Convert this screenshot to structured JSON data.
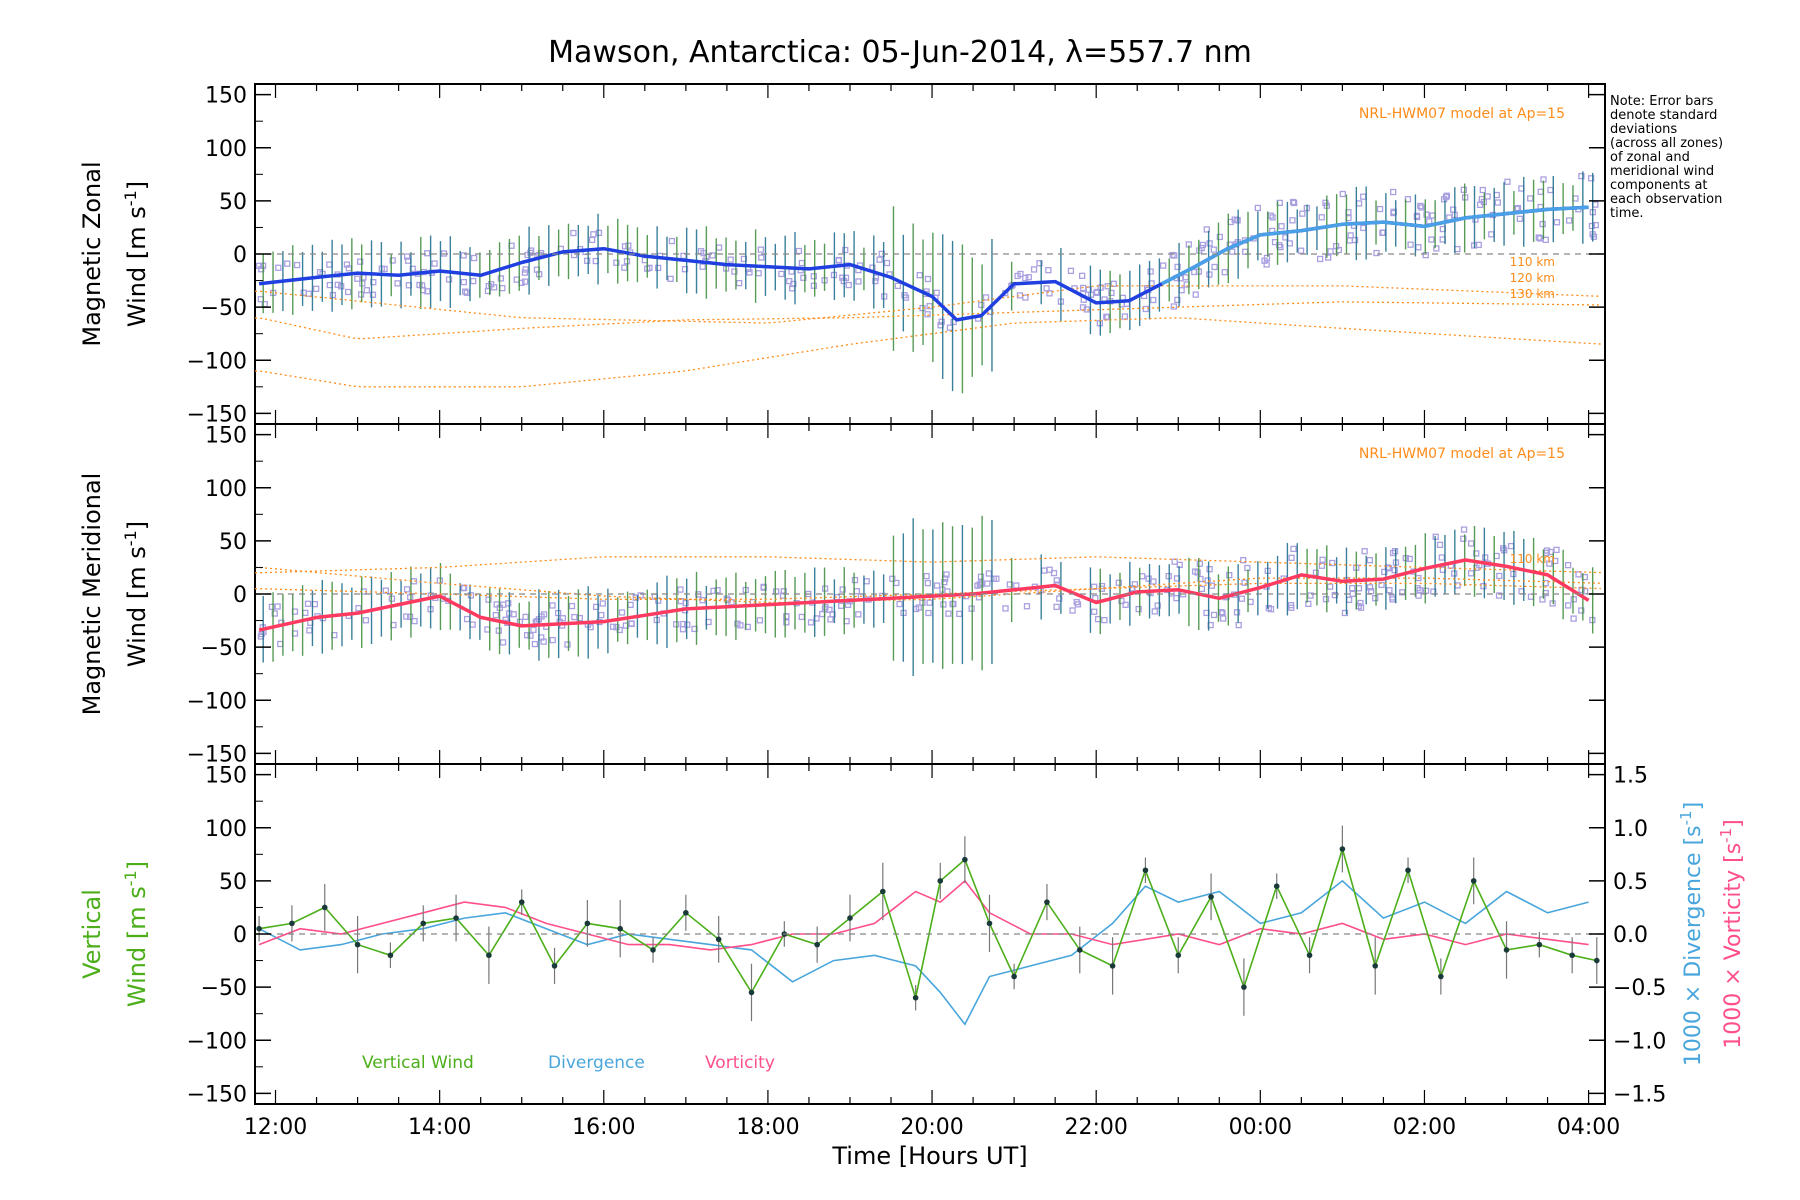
{
  "title": "Mawson, Antarctica: 05-Jun-2014, λ=557.7 nm",
  "note": [
    "Note: Error bars",
    "denote standard",
    "deviations",
    "(across all zones)",
    "of zonal and",
    "meridional wind",
    "components at",
    "each observation",
    "time."
  ],
  "xlabel": "Time [Hours UT]",
  "x_ticks": [
    "12:00",
    "14:00",
    "16:00",
    "18:00",
    "20:00",
    "22:00",
    "00:00",
    "02:00",
    "04:00"
  ],
  "y_ticks": [
    "150",
    "100",
    "50",
    "0",
    "−50",
    "−100",
    "−150"
  ],
  "y2_ticks": [
    "1.5",
    "1.0",
    "0.5",
    "0.0",
    "−0.5",
    "−1.0",
    "−1.5"
  ],
  "panels": {
    "zonal": {
      "ylabel1": "Magnetic Zonal",
      "ylabel2": "Wind [m s",
      "ylabel_sup": "-1",
      "ylabel_close": "]",
      "model_label": "NRL-HWM07 model at Ap=15",
      "height_labels": [
        "110 km",
        "120 km",
        "130 km"
      ]
    },
    "meridional": {
      "ylabel1": "Magnetic Meridional",
      "ylabel2": "Wind [m s",
      "ylabel_sup": "-1",
      "ylabel_close": "]",
      "model_label": "NRL-HWM07 model at Ap=15",
      "height_labels": [
        "110 km"
      ]
    },
    "vertical": {
      "ylabel1": "Vertical",
      "ylabel2": "Wind [m s",
      "ylabel_sup": "-1",
      "ylabel_close": "]",
      "y2label_div": "1000 × Divergence [s",
      "y2label_vort": "1000 × Vorticity [s",
      "y2label_sup": "-1",
      "y2label_close": "]",
      "legend": [
        "Vertical Wind",
        "Divergence",
        "Vorticity"
      ]
    }
  },
  "colors": {
    "zonal_mean": "#1f3fe0",
    "zonal_mean_late": "#4aa0e6",
    "meridional_mean": "#ff3a60",
    "model": "#ff8c1a",
    "vertical": "#4caf1a",
    "divergence": "#49a6dc",
    "vorticity": "#ff4f8a",
    "scatter": "#a9a0e0",
    "errorbar": "#2a8a6a"
  },
  "chart_data": [
    {
      "type": "line",
      "panel": "zonal",
      "x_unit": "hours UT (continuous from 11:45)",
      "xlim": [
        11.75,
        28.2
      ],
      "ylim": [
        -160,
        160
      ],
      "series": [
        {
          "x": [
            11.8,
            12.5,
            13.0,
            13.5,
            14.0,
            14.5,
            15.0,
            15.5,
            16.0,
            16.5,
            17.0,
            17.5,
            18.0,
            18.5,
            19.0,
            19.5,
            20.0,
            20.3,
            20.6,
            21.0,
            21.5,
            22.0,
            22.4,
            22.8,
            23.2,
            23.6,
            24.0,
            24.5,
            25.0,
            25.5,
            26.0,
            26.5,
            27.0,
            27.5,
            28.0
          ],
          "values": [
            -28,
            -22,
            -18,
            -20,
            -16,
            -20,
            -8,
            2,
            5,
            -2,
            -6,
            -10,
            -12,
            -14,
            -10,
            -22,
            -40,
            -62,
            -58,
            -28,
            -26,
            -46,
            -44,
            -28,
            -12,
            5,
            18,
            22,
            28,
            30,
            26,
            34,
            38,
            42,
            44
          ]
        }
      ]
    },
    {
      "type": "line",
      "panel": "meridional",
      "x_unit": "hours UT (continuous from 11:45)",
      "xlim": [
        11.75,
        28.2
      ],
      "ylim": [
        -160,
        160
      ],
      "series": [
        {
          "x": [
            11.8,
            12.5,
            13.0,
            13.5,
            14.0,
            14.5,
            15.0,
            15.5,
            16.0,
            16.5,
            17.0,
            17.5,
            18.0,
            18.5,
            19.0,
            19.5,
            20.0,
            20.5,
            21.0,
            21.5,
            22.0,
            22.5,
            23.0,
            23.5,
            24.0,
            24.5,
            25.0,
            25.5,
            26.0,
            26.5,
            27.0,
            27.5,
            28.0
          ],
          "values": [
            -34,
            -22,
            -18,
            -10,
            -2,
            -22,
            -30,
            -28,
            -26,
            -20,
            -14,
            -12,
            -10,
            -8,
            -6,
            -4,
            -2,
            0,
            4,
            8,
            -8,
            2,
            4,
            -4,
            6,
            18,
            12,
            14,
            24,
            32,
            26,
            18,
            -6
          ]
        }
      ]
    },
    {
      "type": "line",
      "panel": "vertical",
      "x_unit": "hours UT (continuous from 11:45)",
      "xlim": [
        11.75,
        28.2
      ],
      "ylim": [
        -160,
        160
      ],
      "y2lim": [
        -1.6,
        1.6
      ],
      "series": [
        {
          "name": "Vertical Wind",
          "x": [
            11.8,
            12.2,
            12.6,
            13.0,
            13.4,
            13.8,
            14.2,
            14.6,
            15.0,
            15.4,
            15.8,
            16.2,
            16.6,
            17.0,
            17.4,
            17.8,
            18.2,
            18.6,
            19.0,
            19.4,
            19.8,
            20.1,
            20.4,
            20.7,
            21.0,
            21.4,
            21.8,
            22.2,
            22.6,
            23.0,
            23.4,
            23.8,
            24.2,
            24.6,
            25.0,
            25.4,
            25.8,
            26.2,
            26.6,
            27.0,
            27.4,
            27.8,
            28.1
          ],
          "values": [
            5,
            10,
            25,
            -10,
            -20,
            10,
            15,
            -20,
            30,
            -30,
            10,
            5,
            -15,
            20,
            -5,
            -55,
            0,
            -10,
            15,
            40,
            -60,
            50,
            70,
            10,
            -40,
            30,
            -15,
            -30,
            60,
            -20,
            35,
            -50,
            45,
            -20,
            80,
            -30,
            60,
            -40,
            50,
            -15,
            -10,
            -20,
            -25
          ]
        },
        {
          "name": "Divergence",
          "x": [
            11.8,
            12.3,
            12.8,
            13.3,
            13.8,
            14.3,
            14.8,
            15.3,
            15.8,
            16.3,
            16.8,
            17.3,
            17.8,
            18.3,
            18.8,
            19.3,
            19.8,
            20.1,
            20.4,
            20.7,
            21.2,
            21.7,
            22.2,
            22.6,
            23.0,
            23.5,
            24.0,
            24.5,
            25.0,
            25.5,
            26.0,
            26.5,
            27.0,
            27.5,
            28.0
          ],
          "values": [
            0.05,
            -0.15,
            -0.1,
            0.0,
            0.05,
            0.15,
            0.2,
            0.05,
            -0.1,
            0.0,
            -0.05,
            -0.1,
            -0.15,
            -0.45,
            -0.25,
            -0.2,
            -0.3,
            -0.55,
            -0.85,
            -0.4,
            -0.3,
            -0.2,
            0.1,
            0.45,
            0.3,
            0.4,
            0.1,
            0.2,
            0.5,
            0.15,
            0.3,
            0.1,
            0.4,
            0.2,
            0.3
          ]
        },
        {
          "name": "Vorticity",
          "x": [
            11.8,
            12.3,
            12.8,
            13.3,
            13.8,
            14.3,
            14.8,
            15.3,
            15.8,
            16.3,
            16.8,
            17.3,
            17.8,
            18.3,
            18.8,
            19.3,
            19.8,
            20.1,
            20.4,
            20.7,
            21.2,
            21.7,
            22.2,
            22.6,
            23.0,
            23.5,
            24.0,
            24.5,
            25.0,
            25.5,
            26.0,
            26.5,
            27.0,
            27.5,
            28.0
          ],
          "values": [
            -0.1,
            0.05,
            0.0,
            0.1,
            0.2,
            0.3,
            0.25,
            0.1,
            0.0,
            -0.1,
            -0.1,
            -0.15,
            -0.1,
            0.0,
            0.0,
            0.1,
            0.4,
            0.3,
            0.5,
            0.2,
            0.0,
            0.0,
            -0.1,
            -0.05,
            0.0,
            -0.1,
            0.05,
            0.0,
            0.1,
            -0.05,
            0.0,
            -0.1,
            0.0,
            -0.05,
            -0.1
          ]
        }
      ]
    }
  ]
}
